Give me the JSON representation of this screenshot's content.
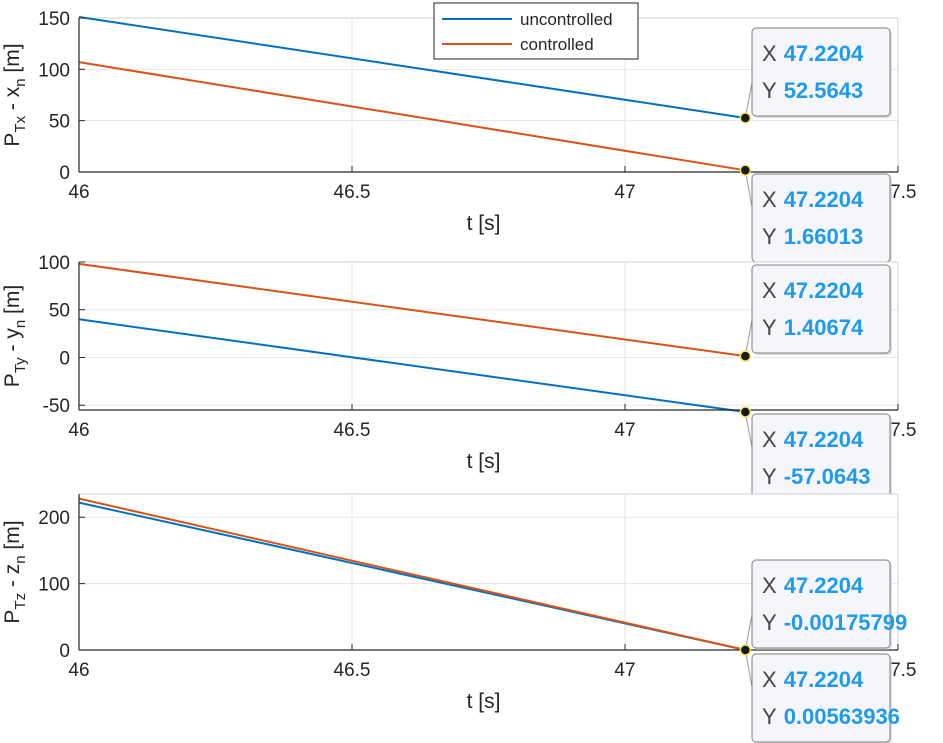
{
  "legend": {
    "position": "top-center",
    "entries": [
      {
        "label": "uncontrolled",
        "color": "#0072BD"
      },
      {
        "label": "controlled",
        "color": "#D95319"
      }
    ]
  },
  "datatip_labels": {
    "x": "X",
    "y": "Y"
  },
  "colors": {
    "uncontrolled": "#0072BD",
    "controlled": "#D95319",
    "datatip_value": "#1E9BEA",
    "grid": "#e6e6e6",
    "axis": "#262626"
  },
  "chart_data": [
    {
      "type": "line",
      "ylabel_main": "P",
      "ylabel_sub1": "Tx",
      "ylabel_mid": " - x",
      "ylabel_sub2": "n",
      "ylabel_unit": " [m]",
      "xlabel": "t [s]",
      "xlim": [
        46,
        47.5
      ],
      "ylim": [
        0,
        150
      ],
      "xticks": [
        46,
        46.5,
        47,
        47.5
      ],
      "xtick_labels": [
        "46",
        "46.5",
        "47",
        "47.5"
      ],
      "yticks": [
        0,
        50,
        100,
        150
      ],
      "ytick_labels": [
        "0",
        "50",
        "100",
        "150"
      ],
      "grid": true,
      "series": [
        {
          "name": "uncontrolled",
          "x": [
            46,
            47.2204
          ],
          "y": [
            151,
            52.5643
          ]
        },
        {
          "name": "controlled",
          "x": [
            46,
            47.2204
          ],
          "y": [
            107,
            1.66013
          ]
        }
      ],
      "datatips": [
        {
          "series": "uncontrolled",
          "x": "47.2204",
          "y": "52.5643",
          "xv": 47.2204,
          "yv": 52.5643
        },
        {
          "series": "controlled",
          "x": "47.2204",
          "y": "1.66013",
          "xv": 47.2204,
          "yv": 1.66013
        }
      ]
    },
    {
      "type": "line",
      "ylabel_main": "P",
      "ylabel_sub1": "Ty",
      "ylabel_mid": " - y",
      "ylabel_sub2": "n",
      "ylabel_unit": " [m]",
      "xlabel": "t [s]",
      "xlim": [
        46,
        47.5
      ],
      "ylim": [
        -55,
        100
      ],
      "xticks": [
        46,
        46.5,
        47,
        47.5
      ],
      "xtick_labels": [
        "46",
        "46.5",
        "47",
        "47.5"
      ],
      "yticks": [
        -50,
        0,
        50,
        100
      ],
      "ytick_labels": [
        "-50",
        "0",
        "50",
        "100"
      ],
      "grid": true,
      "series": [
        {
          "name": "uncontrolled",
          "x": [
            46,
            47.2204
          ],
          "y": [
            40,
            -57.0643
          ]
        },
        {
          "name": "controlled",
          "x": [
            46,
            47.2204
          ],
          "y": [
            98,
            1.40674
          ]
        }
      ],
      "datatips": [
        {
          "series": "controlled",
          "x": "47.2204",
          "y": "1.40674",
          "xv": 47.2204,
          "yv": 1.40674
        },
        {
          "series": "uncontrolled",
          "x": "47.2204",
          "y": "-57.0643",
          "xv": 47.2204,
          "yv": -57.0643
        }
      ]
    },
    {
      "type": "line",
      "ylabel_main": "P",
      "ylabel_sub1": "Tz",
      "ylabel_mid": " - z",
      "ylabel_sub2": "n",
      "ylabel_unit": " [m]",
      "xlabel": "t [s]",
      "xlim": [
        46,
        47.5
      ],
      "ylim": [
        0,
        235
      ],
      "xticks": [
        46,
        46.5,
        47,
        47.5
      ],
      "xtick_labels": [
        "46",
        "46.5",
        "47",
        "47.5"
      ],
      "yticks": [
        0,
        100,
        200
      ],
      "ytick_labels": [
        "0",
        "100",
        "200"
      ],
      "grid": true,
      "series": [
        {
          "name": "uncontrolled",
          "x": [
            46,
            47.2204
          ],
          "y": [
            222,
            -0.00175799
          ]
        },
        {
          "name": "controlled",
          "x": [
            46,
            47.2204
          ],
          "y": [
            228,
            0.00563936
          ]
        }
      ],
      "datatips": [
        {
          "series": "uncontrolled",
          "x": "47.2204",
          "y": "-0.00175799",
          "xv": 47.2204,
          "yv": -0.00175799
        },
        {
          "series": "controlled",
          "x": "47.2204",
          "y": "0.00563936",
          "xv": 47.2204,
          "yv": 0.00563936
        }
      ]
    }
  ]
}
